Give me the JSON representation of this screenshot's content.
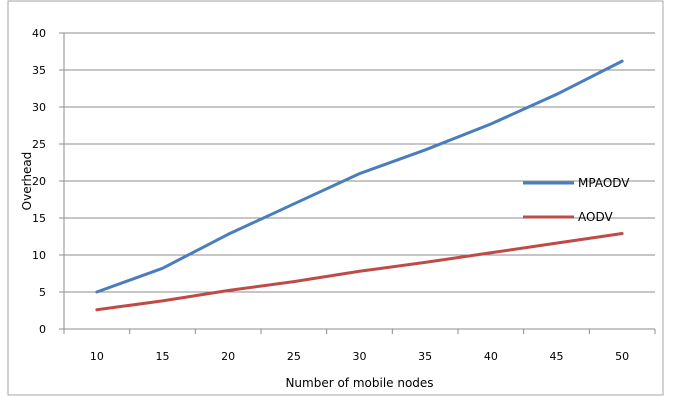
{
  "chart_data": {
    "type": "line",
    "title": "",
    "xlabel": "Number of mobile nodes",
    "ylabel": "Overhead",
    "x": [
      10,
      15,
      20,
      25,
      30,
      35,
      40,
      45,
      50
    ],
    "ylim": [
      0,
      40
    ],
    "yticks": [
      0,
      5,
      10,
      15,
      20,
      25,
      30,
      35,
      40
    ],
    "grid": true,
    "legend_position": "right",
    "series": [
      {
        "name": "MPAODV",
        "color": "#4a7ebb",
        "values": [
          5,
          8.2,
          12.8,
          16.9,
          21,
          24.2,
          27.7,
          31.7,
          36.2
        ]
      },
      {
        "name": "AODV",
        "color": "#be4b48",
        "values": [
          2.6,
          3.8,
          5.2,
          6.4,
          7.8,
          9,
          10.3,
          11.6,
          12.9
        ]
      }
    ]
  }
}
